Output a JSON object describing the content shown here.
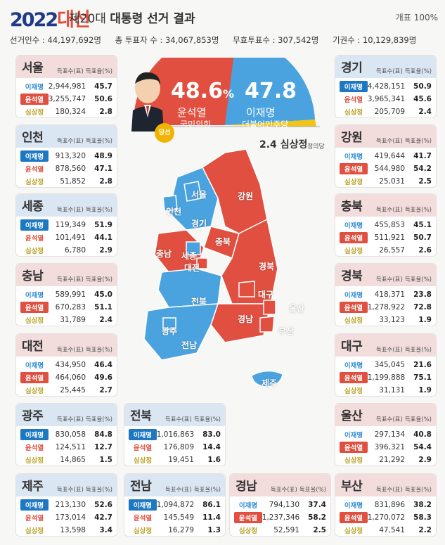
{
  "header": {
    "year": "2022",
    "year_hl": "대선",
    "subtitle_a": "제20대 ",
    "subtitle_b": "대통령 선거 결과",
    "count_rate": "개표 100%",
    "stats": [
      "선거인수 : 44,197,692명",
      "총 투표자 수 : 34,067,853명",
      "무효투표수 : 307,542명",
      "기권수 : 10,129,839명"
    ]
  },
  "national": {
    "yoon": {
      "pct": "48.6",
      "pct_unit": "%",
      "name": "윤석열",
      "party": "국민의힘",
      "color": "#e04f3f"
    },
    "lee": {
      "pct": "47.8",
      "name": "이재명",
      "party": "더불어민주당",
      "color": "#4aa3df"
    },
    "sim": {
      "pct": "2.4",
      "name": "심상정",
      "party": "정의당",
      "color": "#f0c419"
    },
    "winner_badge": "당선"
  },
  "card_header": {
    "votes": "득표수(표)",
    "rate": "득표율(%)"
  },
  "chart_data": {
    "type": "table",
    "columns": [
      "득표수(표)",
      "득표율(%)"
    ],
    "candidates": [
      "이재명",
      "윤석열",
      "심상정"
    ],
    "regions": [
      {
        "name": "서울",
        "winner": "윤석열",
        "rows": [
          [
            "이재명",
            "2,944,981",
            "45.7"
          ],
          [
            "윤석열",
            "3,255,747",
            "50.6"
          ],
          [
            "심상정",
            "180,324",
            "2.8"
          ]
        ]
      },
      {
        "name": "인천",
        "winner": "이재명",
        "rows": [
          [
            "이재명",
            "913,320",
            "48.9"
          ],
          [
            "윤석열",
            "878,560",
            "47.1"
          ],
          [
            "심상정",
            "51,852",
            "2.8"
          ]
        ]
      },
      {
        "name": "세종",
        "winner": "이재명",
        "rows": [
          [
            "이재명",
            "119,349",
            "51.9"
          ],
          [
            "윤석열",
            "101,491",
            "44.1"
          ],
          [
            "심상정",
            "6,780",
            "2.9"
          ]
        ]
      },
      {
        "name": "충남",
        "winner": "윤석열",
        "rows": [
          [
            "이재명",
            "589,991",
            "45.0"
          ],
          [
            "윤석열",
            "670,283",
            "51.1"
          ],
          [
            "심상정",
            "31,789",
            "2.4"
          ]
        ]
      },
      {
        "name": "대전",
        "winner": "윤석열",
        "rows": [
          [
            "이재명",
            "434,950",
            "46.4"
          ],
          [
            "윤석열",
            "464,060",
            "49.6"
          ],
          [
            "심상정",
            "25,445",
            "2.7"
          ]
        ]
      },
      {
        "name": "광주",
        "winner": "이재명",
        "rows": [
          [
            "이재명",
            "830,058",
            "84.8"
          ],
          [
            "윤석열",
            "124,511",
            "12.7"
          ],
          [
            "심상정",
            "14,865",
            "1.5"
          ]
        ]
      },
      {
        "name": "제주",
        "winner": "이재명",
        "rows": [
          [
            "이재명",
            "213,130",
            "52.6"
          ],
          [
            "윤석열",
            "173,014",
            "42.7"
          ],
          [
            "심상정",
            "13,598",
            "3.4"
          ]
        ]
      },
      {
        "name": "전북",
        "winner": "이재명",
        "rows": [
          [
            "이재명",
            "1,016,863",
            "83.0"
          ],
          [
            "윤석열",
            "176,809",
            "14.4"
          ],
          [
            "심상정",
            "19,451",
            "1.6"
          ]
        ]
      },
      {
        "name": "전남",
        "winner": "이재명",
        "rows": [
          [
            "이재명",
            "1,094,872",
            "86.1"
          ],
          [
            "윤석열",
            "145,549",
            "11.4"
          ],
          [
            "심상정",
            "16,279",
            "1.3"
          ]
        ]
      },
      {
        "name": "경남",
        "winner": "윤석열",
        "rows": [
          [
            "이재명",
            "794,130",
            "37.4"
          ],
          [
            "윤석열",
            "1,237,346",
            "58.2"
          ],
          [
            "심상정",
            "52,591",
            "2.5"
          ]
        ]
      },
      {
        "name": "경기",
        "winner": "이재명",
        "rows": [
          [
            "이재명",
            "4,428,151",
            "50.9"
          ],
          [
            "윤석열",
            "3,965,341",
            "45.6"
          ],
          [
            "심상정",
            "205,709",
            "2.4"
          ]
        ]
      },
      {
        "name": "강원",
        "winner": "윤석열",
        "rows": [
          [
            "이재명",
            "419,644",
            "41.7"
          ],
          [
            "윤석열",
            "544,980",
            "54.2"
          ],
          [
            "심상정",
            "25,031",
            "2.5"
          ]
        ]
      },
      {
        "name": "충북",
        "winner": "윤석열",
        "rows": [
          [
            "이재명",
            "455,853",
            "45.1"
          ],
          [
            "윤석열",
            "511,921",
            "50.7"
          ],
          [
            "심상정",
            "26,557",
            "2.6"
          ]
        ]
      },
      {
        "name": "경북",
        "winner": "윤석열",
        "rows": [
          [
            "이재명",
            "418,371",
            "23.8"
          ],
          [
            "윤석열",
            "1,278,922",
            "72.8"
          ],
          [
            "심상정",
            "33,123",
            "1.9"
          ]
        ]
      },
      {
        "name": "대구",
        "winner": "윤석열",
        "rows": [
          [
            "이재명",
            "345,045",
            "21.6"
          ],
          [
            "윤석열",
            "1,199,888",
            "75.1"
          ],
          [
            "심상정",
            "31,131",
            "1.9"
          ]
        ]
      },
      {
        "name": "울산",
        "winner": "윤석열",
        "rows": [
          [
            "이재명",
            "297,134",
            "40.8"
          ],
          [
            "윤석열",
            "396,321",
            "54.4"
          ],
          [
            "심상정",
            "21,292",
            "2.9"
          ]
        ]
      },
      {
        "name": "부산",
        "winner": "윤석열",
        "rows": [
          [
            "이재명",
            "831,896",
            "38.2"
          ],
          [
            "윤석열",
            "1,270,072",
            "58.3"
          ],
          [
            "심상정",
            "47,541",
            "2.2"
          ]
        ]
      }
    ]
  },
  "map_labels": [
    "서울",
    "인천",
    "경기",
    "강원",
    "충북",
    "충남",
    "세종",
    "대전",
    "경북",
    "대구",
    "전북",
    "광주",
    "전남",
    "경남",
    "울산",
    "부산",
    "제주"
  ]
}
